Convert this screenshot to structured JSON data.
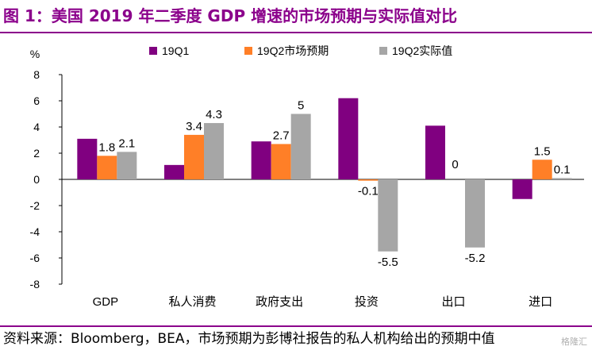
{
  "title": "图 1：美国 2019 年二季度 GDP 增速的市场预期与实际值对比",
  "footer": "资料来源：Bloomberg，BEA，市场预期为彭博社报告的私人机构给出的预期中值",
  "watermark": "格隆汇",
  "chart_data": {
    "type": "bar",
    "title": "美国 2019 年二季度 GDP 增速的市场预期与实际值对比",
    "ylabel": "%",
    "xlabel": "",
    "ylim": [
      -8,
      8
    ],
    "yticks": [
      -8,
      -6,
      -4,
      -2,
      0,
      2,
      4,
      6,
      8
    ],
    "categories": [
      "GDP",
      "私人消费",
      "政府支出",
      "投资",
      "出口",
      "进口"
    ],
    "legend_position": "top",
    "series": [
      {
        "name": "19Q1",
        "color": "#800080",
        "values": [
          3.1,
          1.1,
          2.9,
          6.2,
          4.1,
          -1.5
        ],
        "labels": [
          null,
          null,
          null,
          null,
          null,
          null
        ]
      },
      {
        "name": "19Q2市场预期",
        "color": "#ff7f27",
        "values": [
          1.8,
          3.4,
          2.7,
          -0.1,
          0,
          1.5
        ],
        "labels": [
          "1.8",
          "3.4",
          "2.7",
          "-0.1",
          "0",
          "1.5"
        ]
      },
      {
        "name": "19Q2实际值",
        "color": "#a6a6a6",
        "values": [
          2.1,
          4.3,
          5,
          -5.5,
          -5.2,
          0.1
        ],
        "labels": [
          "2.1",
          "4.3",
          "5",
          "-5.5",
          "-5.2",
          "0.1"
        ]
      }
    ]
  }
}
